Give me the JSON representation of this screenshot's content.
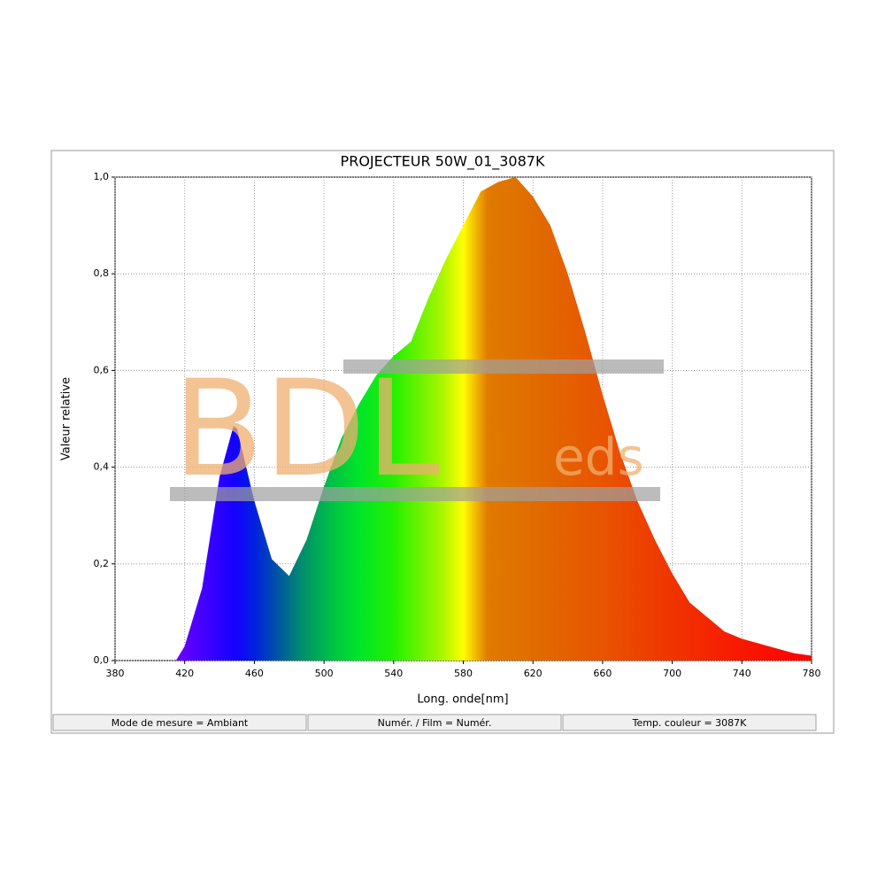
{
  "chart_data": {
    "type": "area",
    "title": "PROJECTEUR 50W_01_3087K",
    "xlabel": "Long. onde[nm]",
    "ylabel": "Valeur relative",
    "watermark": "BDL",
    "watermark_sub": "eds",
    "x": [
      380,
      390,
      400,
      410,
      415,
      420,
      430,
      440,
      448,
      450,
      460,
      470,
      480,
      490,
      500,
      510,
      520,
      530,
      540,
      550,
      560,
      570,
      580,
      590,
      600,
      610,
      620,
      630,
      640,
      650,
      660,
      670,
      680,
      690,
      700,
      710,
      720,
      730,
      740,
      750,
      760,
      770,
      780
    ],
    "values": [
      0,
      0,
      0,
      0,
      0,
      0.03,
      0.15,
      0.38,
      0.485,
      0.48,
      0.33,
      0.21,
      0.175,
      0.25,
      0.36,
      0.46,
      0.53,
      0.59,
      0.63,
      0.66,
      0.75,
      0.83,
      0.9,
      0.97,
      0.99,
      1.0,
      0.96,
      0.9,
      0.8,
      0.68,
      0.55,
      0.43,
      0.33,
      0.25,
      0.18,
      0.12,
      0.09,
      0.06,
      0.045,
      0.035,
      0.025,
      0.015,
      0.01
    ],
    "xlim": [
      380,
      780
    ],
    "ylim": [
      0,
      1
    ],
    "xticks": [
      380,
      420,
      460,
      500,
      540,
      580,
      620,
      660,
      700,
      740,
      780
    ],
    "yticks": [
      {
        "value": 0,
        "label": "0,0"
      },
      {
        "value": 0.2,
        "label": "0,2"
      },
      {
        "value": 0.4,
        "label": "0,4"
      },
      {
        "value": 0.6,
        "label": "0,6"
      },
      {
        "value": 0.8,
        "label": "0,8"
      },
      {
        "value": 1,
        "label": "1,0"
      }
    ],
    "grid": true,
    "status": [
      "Mode de mesure = Ambiant",
      "Numér. / Film = Numér.",
      "Temp. couleur = 3087K"
    ]
  }
}
